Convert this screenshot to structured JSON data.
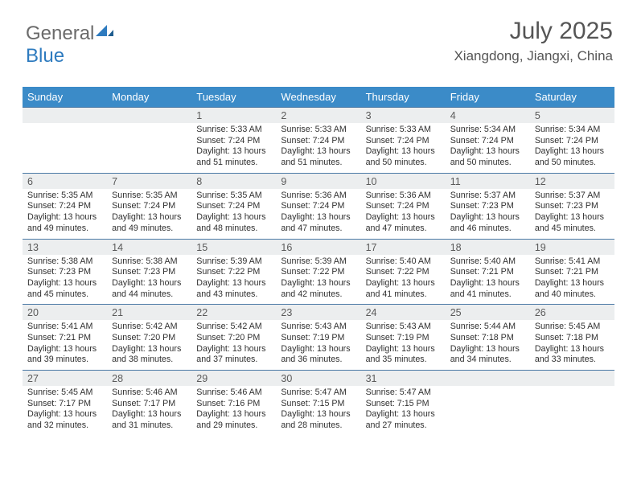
{
  "logo": {
    "part1": "General",
    "part2": "Blue"
  },
  "title": "July 2025",
  "location": "Xiangdong, Jiangxi, China",
  "colors": {
    "header_bg": "#3b8bc8",
    "header_text": "#ffffff",
    "daynum_bg": "#eceeef",
    "week_border": "#4a79a5",
    "text": "#333333",
    "title_color": "#555555"
  },
  "dow": [
    "Sunday",
    "Monday",
    "Tuesday",
    "Wednesday",
    "Thursday",
    "Friday",
    "Saturday"
  ],
  "weeks": [
    [
      null,
      null,
      {
        "n": "1",
        "sr": "5:33 AM",
        "ss": "7:24 PM",
        "dl": "13 hours and 51 minutes."
      },
      {
        "n": "2",
        "sr": "5:33 AM",
        "ss": "7:24 PM",
        "dl": "13 hours and 51 minutes."
      },
      {
        "n": "3",
        "sr": "5:33 AM",
        "ss": "7:24 PM",
        "dl": "13 hours and 50 minutes."
      },
      {
        "n": "4",
        "sr": "5:34 AM",
        "ss": "7:24 PM",
        "dl": "13 hours and 50 minutes."
      },
      {
        "n": "5",
        "sr": "5:34 AM",
        "ss": "7:24 PM",
        "dl": "13 hours and 50 minutes."
      }
    ],
    [
      {
        "n": "6",
        "sr": "5:35 AM",
        "ss": "7:24 PM",
        "dl": "13 hours and 49 minutes."
      },
      {
        "n": "7",
        "sr": "5:35 AM",
        "ss": "7:24 PM",
        "dl": "13 hours and 49 minutes."
      },
      {
        "n": "8",
        "sr": "5:35 AM",
        "ss": "7:24 PM",
        "dl": "13 hours and 48 minutes."
      },
      {
        "n": "9",
        "sr": "5:36 AM",
        "ss": "7:24 PM",
        "dl": "13 hours and 47 minutes."
      },
      {
        "n": "10",
        "sr": "5:36 AM",
        "ss": "7:24 PM",
        "dl": "13 hours and 47 minutes."
      },
      {
        "n": "11",
        "sr": "5:37 AM",
        "ss": "7:23 PM",
        "dl": "13 hours and 46 minutes."
      },
      {
        "n": "12",
        "sr": "5:37 AM",
        "ss": "7:23 PM",
        "dl": "13 hours and 45 minutes."
      }
    ],
    [
      {
        "n": "13",
        "sr": "5:38 AM",
        "ss": "7:23 PM",
        "dl": "13 hours and 45 minutes."
      },
      {
        "n": "14",
        "sr": "5:38 AM",
        "ss": "7:23 PM",
        "dl": "13 hours and 44 minutes."
      },
      {
        "n": "15",
        "sr": "5:39 AM",
        "ss": "7:22 PM",
        "dl": "13 hours and 43 minutes."
      },
      {
        "n": "16",
        "sr": "5:39 AM",
        "ss": "7:22 PM",
        "dl": "13 hours and 42 minutes."
      },
      {
        "n": "17",
        "sr": "5:40 AM",
        "ss": "7:22 PM",
        "dl": "13 hours and 41 minutes."
      },
      {
        "n": "18",
        "sr": "5:40 AM",
        "ss": "7:21 PM",
        "dl": "13 hours and 41 minutes."
      },
      {
        "n": "19",
        "sr": "5:41 AM",
        "ss": "7:21 PM",
        "dl": "13 hours and 40 minutes."
      }
    ],
    [
      {
        "n": "20",
        "sr": "5:41 AM",
        "ss": "7:21 PM",
        "dl": "13 hours and 39 minutes."
      },
      {
        "n": "21",
        "sr": "5:42 AM",
        "ss": "7:20 PM",
        "dl": "13 hours and 38 minutes."
      },
      {
        "n": "22",
        "sr": "5:42 AM",
        "ss": "7:20 PM",
        "dl": "13 hours and 37 minutes."
      },
      {
        "n": "23",
        "sr": "5:43 AM",
        "ss": "7:19 PM",
        "dl": "13 hours and 36 minutes."
      },
      {
        "n": "24",
        "sr": "5:43 AM",
        "ss": "7:19 PM",
        "dl": "13 hours and 35 minutes."
      },
      {
        "n": "25",
        "sr": "5:44 AM",
        "ss": "7:18 PM",
        "dl": "13 hours and 34 minutes."
      },
      {
        "n": "26",
        "sr": "5:45 AM",
        "ss": "7:18 PM",
        "dl": "13 hours and 33 minutes."
      }
    ],
    [
      {
        "n": "27",
        "sr": "5:45 AM",
        "ss": "7:17 PM",
        "dl": "13 hours and 32 minutes."
      },
      {
        "n": "28",
        "sr": "5:46 AM",
        "ss": "7:17 PM",
        "dl": "13 hours and 31 minutes."
      },
      {
        "n": "29",
        "sr": "5:46 AM",
        "ss": "7:16 PM",
        "dl": "13 hours and 29 minutes."
      },
      {
        "n": "30",
        "sr": "5:47 AM",
        "ss": "7:15 PM",
        "dl": "13 hours and 28 minutes."
      },
      {
        "n": "31",
        "sr": "5:47 AM",
        "ss": "7:15 PM",
        "dl": "13 hours and 27 minutes."
      },
      null,
      null
    ]
  ],
  "labels": {
    "sunrise": "Sunrise: ",
    "sunset": "Sunset: ",
    "daylight": "Daylight: "
  }
}
